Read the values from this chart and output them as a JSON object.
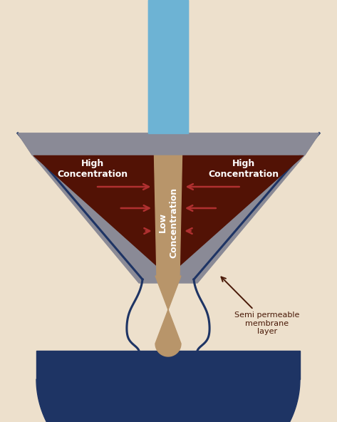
{
  "bg_color": "#ede0cc",
  "water_stream_color": "#6db3d4",
  "gray_filter_color": "#8a8a96",
  "dark_brown_color": "#521205",
  "tan_center_color": "#b8956a",
  "dark_blue_color": "#1e3464",
  "arrow_color": "#b03030",
  "annotation_color": "#4a1a08",
  "text_high_conc": "High\nConcentration",
  "text_low_conc": "Low\nConcentration",
  "text_semi": "Semi permeable\nmembrane\nlayer",
  "figsize": [
    4.73,
    5.92
  ],
  "dpi": 100
}
